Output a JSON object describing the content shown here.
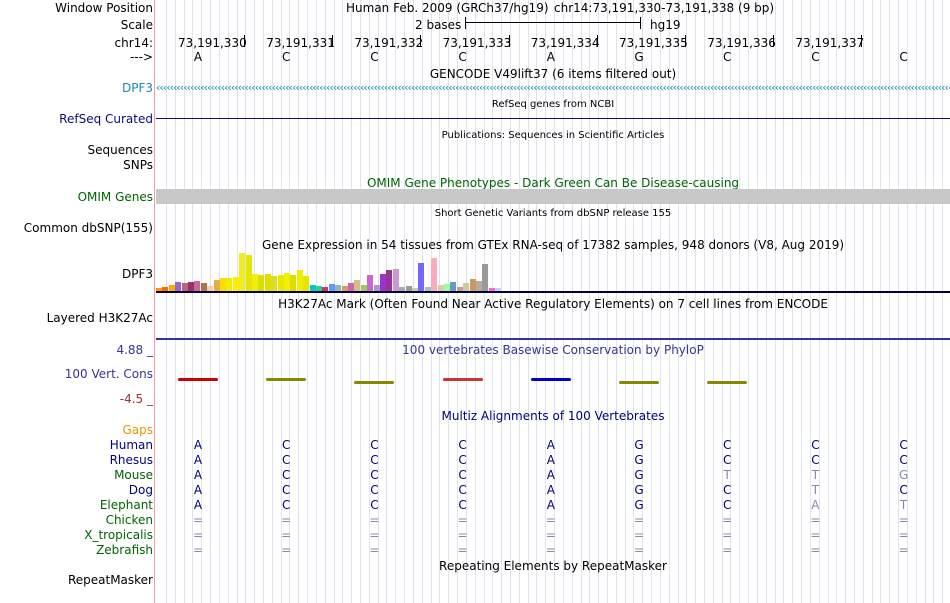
{
  "header": {
    "window_position_label": "Window Position",
    "assembly_text": "Human Feb. 2009 (GRCh37/hg19)",
    "position_text": "chr14:73,191,330-73,191,338 (9 bp)",
    "scale_label": "Scale",
    "scale_text": "2 bases",
    "scale_assembly": "hg19",
    "chrom_label": "chr14:",
    "strand_label": "--->",
    "coords": [
      "73,191,330",
      "73,191,331",
      "73,191,332",
      "73,191,333",
      "73,191,334",
      "73,191,335",
      "73,191,336",
      "73,191,337"
    ],
    "sequence": [
      "A",
      "C",
      "C",
      "C",
      "A",
      "G",
      "C",
      "C",
      "C"
    ]
  },
  "tracks": {
    "gencode_title": "GENCODE V49lift37 (6 items filtered out)",
    "gencode_gene": "DPF3",
    "refseq_title": "RefSeq genes from NCBI",
    "refseq_label": "RefSeq Curated",
    "pubs_title": "Publications: Sequences in Scientific Articles",
    "pubs_label": "Sequences",
    "snps_label": "SNPs",
    "omim_title": "OMIM Gene Phenotypes - Dark Green Can Be Disease-causing",
    "omim_label": "OMIM Genes",
    "dbsnp_title": "Short Genetic Variants from dbSNP release 155",
    "dbsnp_label": "Common dbSNP(155)",
    "gtex_title": "Gene Expression in 54 tissues from GTEx RNA-seq of 17382 samples, 948 donors (V8, Aug 2019)",
    "gtex_label": "DPF3",
    "h3k27ac_title": "H3K27Ac Mark (Often Found Near Active Regulatory Elements) on 7 cell lines from ENCODE",
    "h3k27ac_label": "Layered H3K27Ac",
    "cons_title": "100 vertebrates Basewise Conservation by PhyloP",
    "cons_max": "4.88 _",
    "cons_label": "100 Vert. Cons",
    "cons_min": "-4.5 _",
    "multiz_title": "Multiz Alignments of 100 Vertebrates",
    "gaps_label": "Gaps",
    "repeat_title": "Repeating Elements by RepeatMasker",
    "repeat_label": "RepeatMasker"
  },
  "gtex_values": [
    3,
    4,
    6,
    9,
    8,
    9,
    10,
    8,
    5,
    11,
    13,
    13,
    14,
    38,
    36,
    17,
    16,
    17,
    15,
    16,
    18,
    16,
    21,
    15,
    6,
    5,
    4,
    7,
    6,
    5,
    8,
    11,
    6,
    16,
    6,
    17,
    21,
    22,
    4,
    5,
    3,
    28,
    4,
    33,
    6,
    7,
    9,
    4,
    8,
    12,
    10,
    27,
    3,
    3
  ],
  "gtex_colors": [
    "#ff9900",
    "#ff6600",
    "#ffaa00",
    "#9966cc",
    "#bb6677",
    "#993366",
    "#cc6699",
    "#aa7744",
    "#ffccaa",
    "#eeaa44",
    "#ffdd00",
    "#eeee00",
    "#ffee00",
    "#eeee22",
    "#e6e600",
    "#eeee11",
    "#dddd00",
    "#e0e000",
    "#dddd22",
    "#e8e800",
    "#f0f000",
    "#dddd00",
    "#eeee00",
    "#e6e600",
    "#00cccc",
    "#33cc99",
    "#cc3366",
    "#6699ff",
    "#88bbbb",
    "#dd9966",
    "#cc66aa",
    "#ddbb88",
    "#99cc66",
    "#cc66cc",
    "#aa99cc",
    "#9933cc",
    "#993399",
    "#cc99cc",
    "#aaaaaa",
    "#999999",
    "#ccccaa",
    "#7766ff",
    "#aabbcc",
    "#ffaabb",
    "#ddccaa",
    "#99ff99",
    "#6699cc",
    "#cc9999",
    "#cccc99",
    "#cc9966",
    "#bbaa99",
    "#999999",
    "#ff66cc",
    "#ccccff"
  ],
  "cons_bars": [
    {
      "color": "#cc0000",
      "sign": "up"
    },
    {
      "color": "#888800",
      "sign": "up"
    },
    {
      "color": "#888800",
      "sign": "down"
    },
    {
      "color": "#cc3333",
      "sign": "up"
    },
    {
      "color": "#0000cc",
      "sign": "up"
    },
    {
      "color": "#888800",
      "sign": "down"
    },
    {
      "color": "#888800",
      "sign": "down"
    }
  ],
  "alignments": [
    {
      "species": "Human",
      "color": "#000080",
      "bases": [
        "A",
        "C",
        "C",
        "C",
        "A",
        "G",
        "C",
        "C",
        "C"
      ],
      "dim": [
        false,
        false,
        false,
        false,
        false,
        false,
        false,
        false,
        false
      ]
    },
    {
      "species": "Rhesus",
      "color": "#000080",
      "bases": [
        "A",
        "C",
        "C",
        "C",
        "A",
        "G",
        "C",
        "C",
        "C"
      ],
      "dim": [
        false,
        false,
        false,
        false,
        false,
        false,
        false,
        false,
        false
      ]
    },
    {
      "species": "Mouse",
      "color": "#006400",
      "bases": [
        "A",
        "C",
        "C",
        "C",
        "A",
        "G",
        "T",
        "T",
        "G"
      ],
      "dim": [
        false,
        false,
        false,
        false,
        false,
        false,
        true,
        true,
        true
      ]
    },
    {
      "species": "Dog",
      "color": "#000080",
      "bases": [
        "A",
        "C",
        "C",
        "C",
        "A",
        "G",
        "C",
        "T",
        "C"
      ],
      "dim": [
        false,
        false,
        false,
        false,
        false,
        false,
        false,
        true,
        false
      ]
    },
    {
      "species": "Elephant",
      "color": "#006400",
      "bases": [
        "A",
        "C",
        "C",
        "C",
        "A",
        "G",
        "C",
        "A",
        "T"
      ],
      "dim": [
        false,
        false,
        false,
        false,
        false,
        false,
        false,
        true,
        true
      ]
    },
    {
      "species": "Chicken",
      "color": "#006400",
      "bases": [
        "=",
        "=",
        "=",
        "=",
        "=",
        "=",
        "=",
        "=",
        "="
      ],
      "dim": [
        true,
        true,
        true,
        true,
        true,
        true,
        true,
        true,
        true
      ]
    },
    {
      "species": "X_tropicalis",
      "color": "#006400",
      "bases": [
        "=",
        "=",
        "=",
        "=",
        "=",
        "=",
        "=",
        "=",
        "="
      ],
      "dim": [
        true,
        true,
        true,
        true,
        true,
        true,
        true,
        true,
        true
      ]
    },
    {
      "species": "Zebrafish",
      "color": "#006400",
      "bases": [
        "=",
        "=",
        "=",
        "=",
        "=",
        "=",
        "=",
        "=",
        "="
      ],
      "dim": [
        true,
        true,
        true,
        true,
        true,
        true,
        true,
        true,
        true
      ]
    }
  ],
  "colors": {
    "gencode": "#1a88b8",
    "refseq": "#0c0c78",
    "omim": "#006400",
    "gtex_line": "#000040",
    "h3k27ac": "#333399",
    "cons": "#333399",
    "cons_min": "#993333",
    "gaps": "#e69500",
    "multiz": "#000080"
  }
}
